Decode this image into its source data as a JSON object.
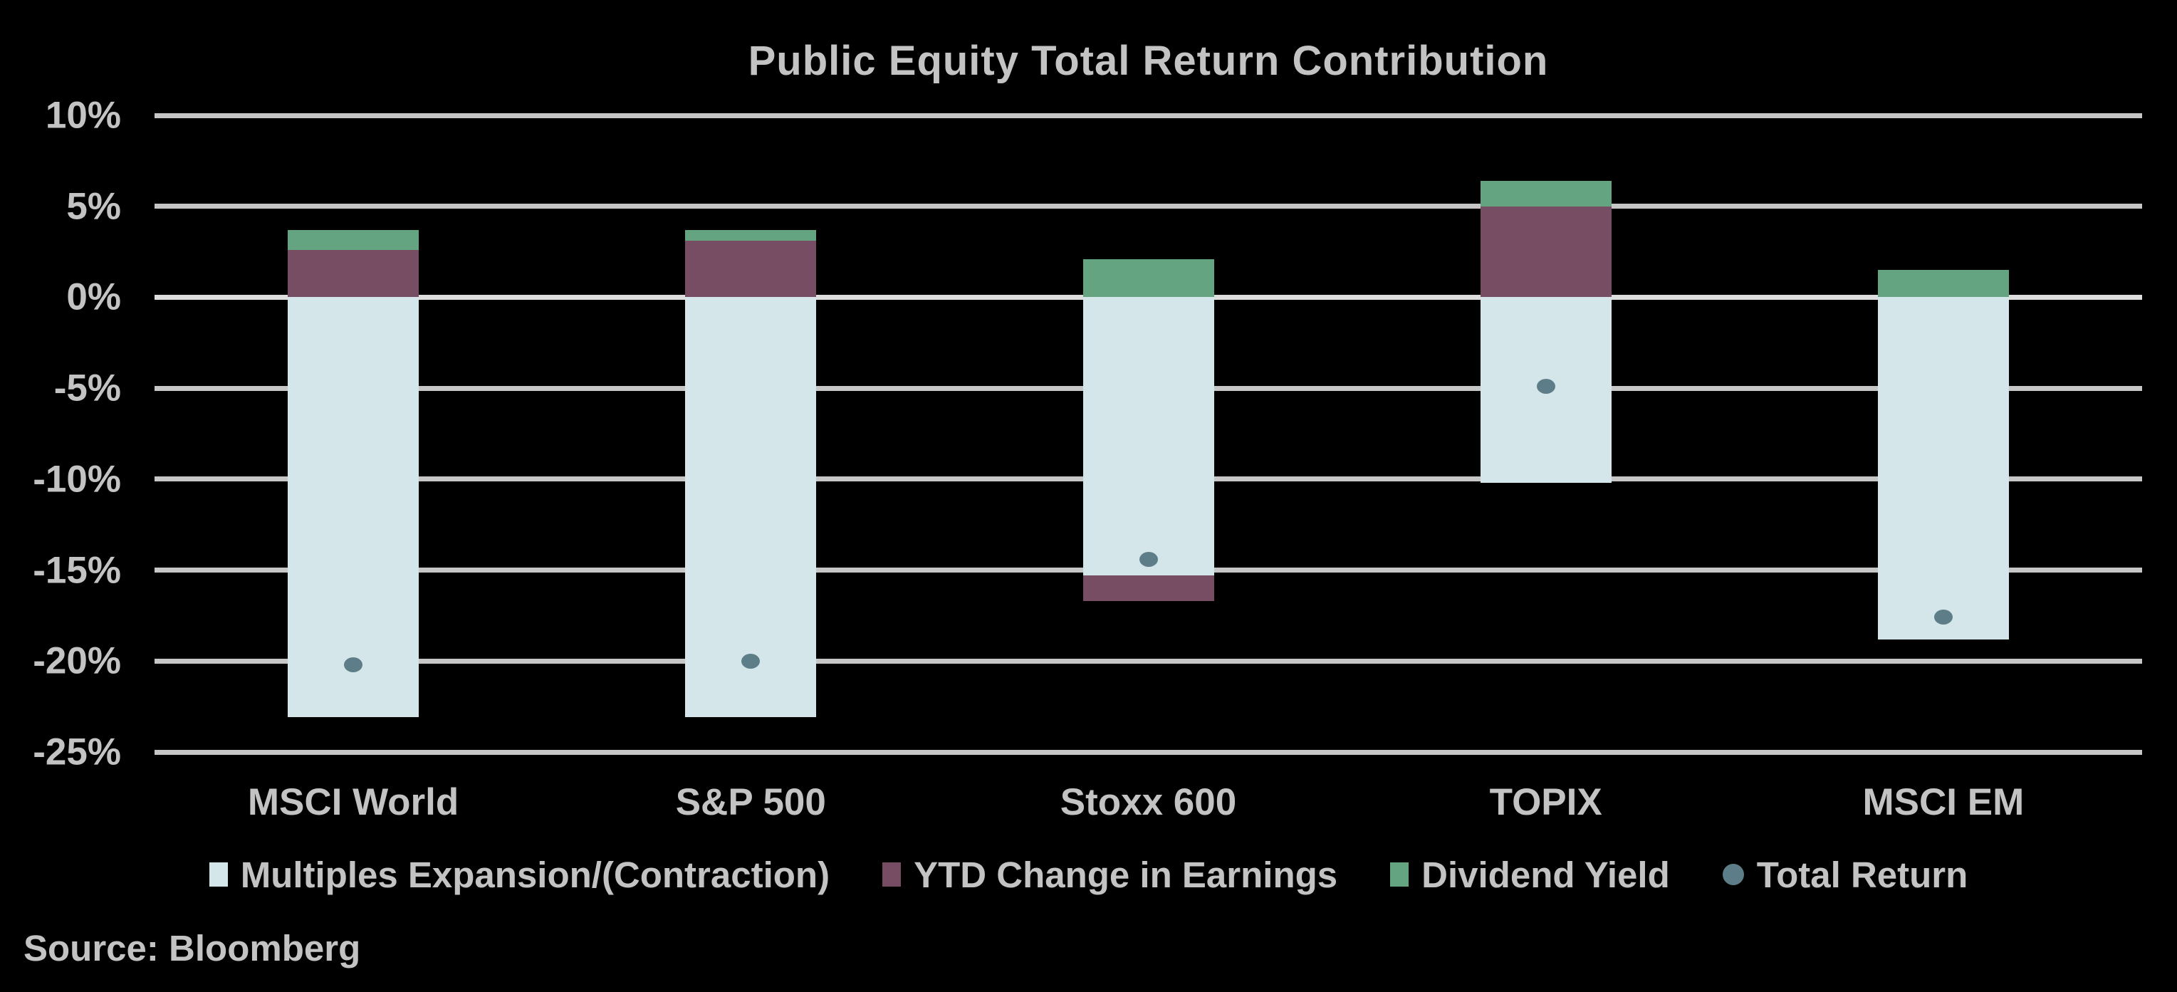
{
  "title": "Public Equity Total Return Contribution",
  "source": "Source: Bloomberg",
  "colors": {
    "background": "#000000",
    "text": "#c3c3c3",
    "gridline": "#c6c6c6",
    "zero_gridline": "#dedede",
    "multiple_expansion": "#d5e6ea",
    "ytd_change_in_earnings": "#774d64",
    "dividend_yield": "#65a481",
    "total_return_dot": "#5d7d88"
  },
  "y_axis": {
    "ticks": [
      {
        "label": "10%",
        "value": 10
      },
      {
        "label": "5%",
        "value": 5
      },
      {
        "label": "0%",
        "value": 0
      },
      {
        "label": "-5%",
        "value": -5
      },
      {
        "label": "-10%",
        "value": -10
      },
      {
        "label": "-15%",
        "value": -15
      },
      {
        "label": "-20%",
        "value": -20
      },
      {
        "label": "-25%",
        "value": -25
      }
    ]
  },
  "chart_data": {
    "type": "bar",
    "stacked": true,
    "title": "Public Equity Total Return Contribution",
    "xlabel": "",
    "ylabel": "",
    "ylim": [
      -25,
      10
    ],
    "grid": true,
    "legend_position": "bottom",
    "categories": [
      "MSCI World",
      "S&P 500",
      "Stoxx 600",
      "TOPIX",
      "MSCI EM"
    ],
    "series": [
      {
        "name": "Multiples Expansion/(Contraction)",
        "type": "bar",
        "marker": "square",
        "color": "#d5e6ea",
        "values": [
          -23.1,
          -23.1,
          -15.3,
          -10.2,
          -18.8
        ]
      },
      {
        "name": "YTD Change in Earnings",
        "type": "bar",
        "marker": "square",
        "color": "#774d64",
        "values": [
          2.6,
          3.1,
          -1.4,
          5.0,
          0.0
        ]
      },
      {
        "name": "Dividend Yield",
        "type": "bar",
        "marker": "square",
        "color": "#65a481",
        "values": [
          1.1,
          0.6,
          2.1,
          1.4,
          1.5
        ]
      },
      {
        "name": "Total Return",
        "type": "scatter",
        "marker": "circle",
        "color": "#5d7d88",
        "values": [
          -20.2,
          -20.0,
          -14.4,
          -4.9,
          -17.6
        ]
      }
    ]
  }
}
